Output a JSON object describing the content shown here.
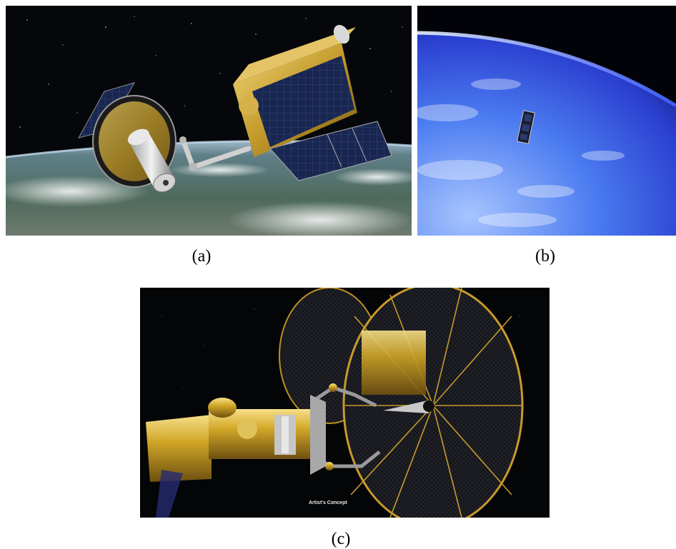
{
  "figure": {
    "panels": [
      {
        "id": "a",
        "caption": "(a)",
        "depicts": "servicing spacecraft with robotic arm grappling satellite above Earth"
      },
      {
        "id": "b",
        "caption": "(b)",
        "depicts": "small satellite orbiting above blue Earth limb"
      },
      {
        "id": "c",
        "caption": "(c)",
        "depicts": "gold-foil servicing vehicle with robotic arms docking at large mesh antenna",
        "overlay_text": "Artist's Concept"
      }
    ]
  },
  "colors": {
    "space": "#050608",
    "gold_foil": "#c9a020",
    "solar_panel": "#1a2850",
    "earth_blue": "#2f5bd8",
    "caption_text": "#000000"
  }
}
